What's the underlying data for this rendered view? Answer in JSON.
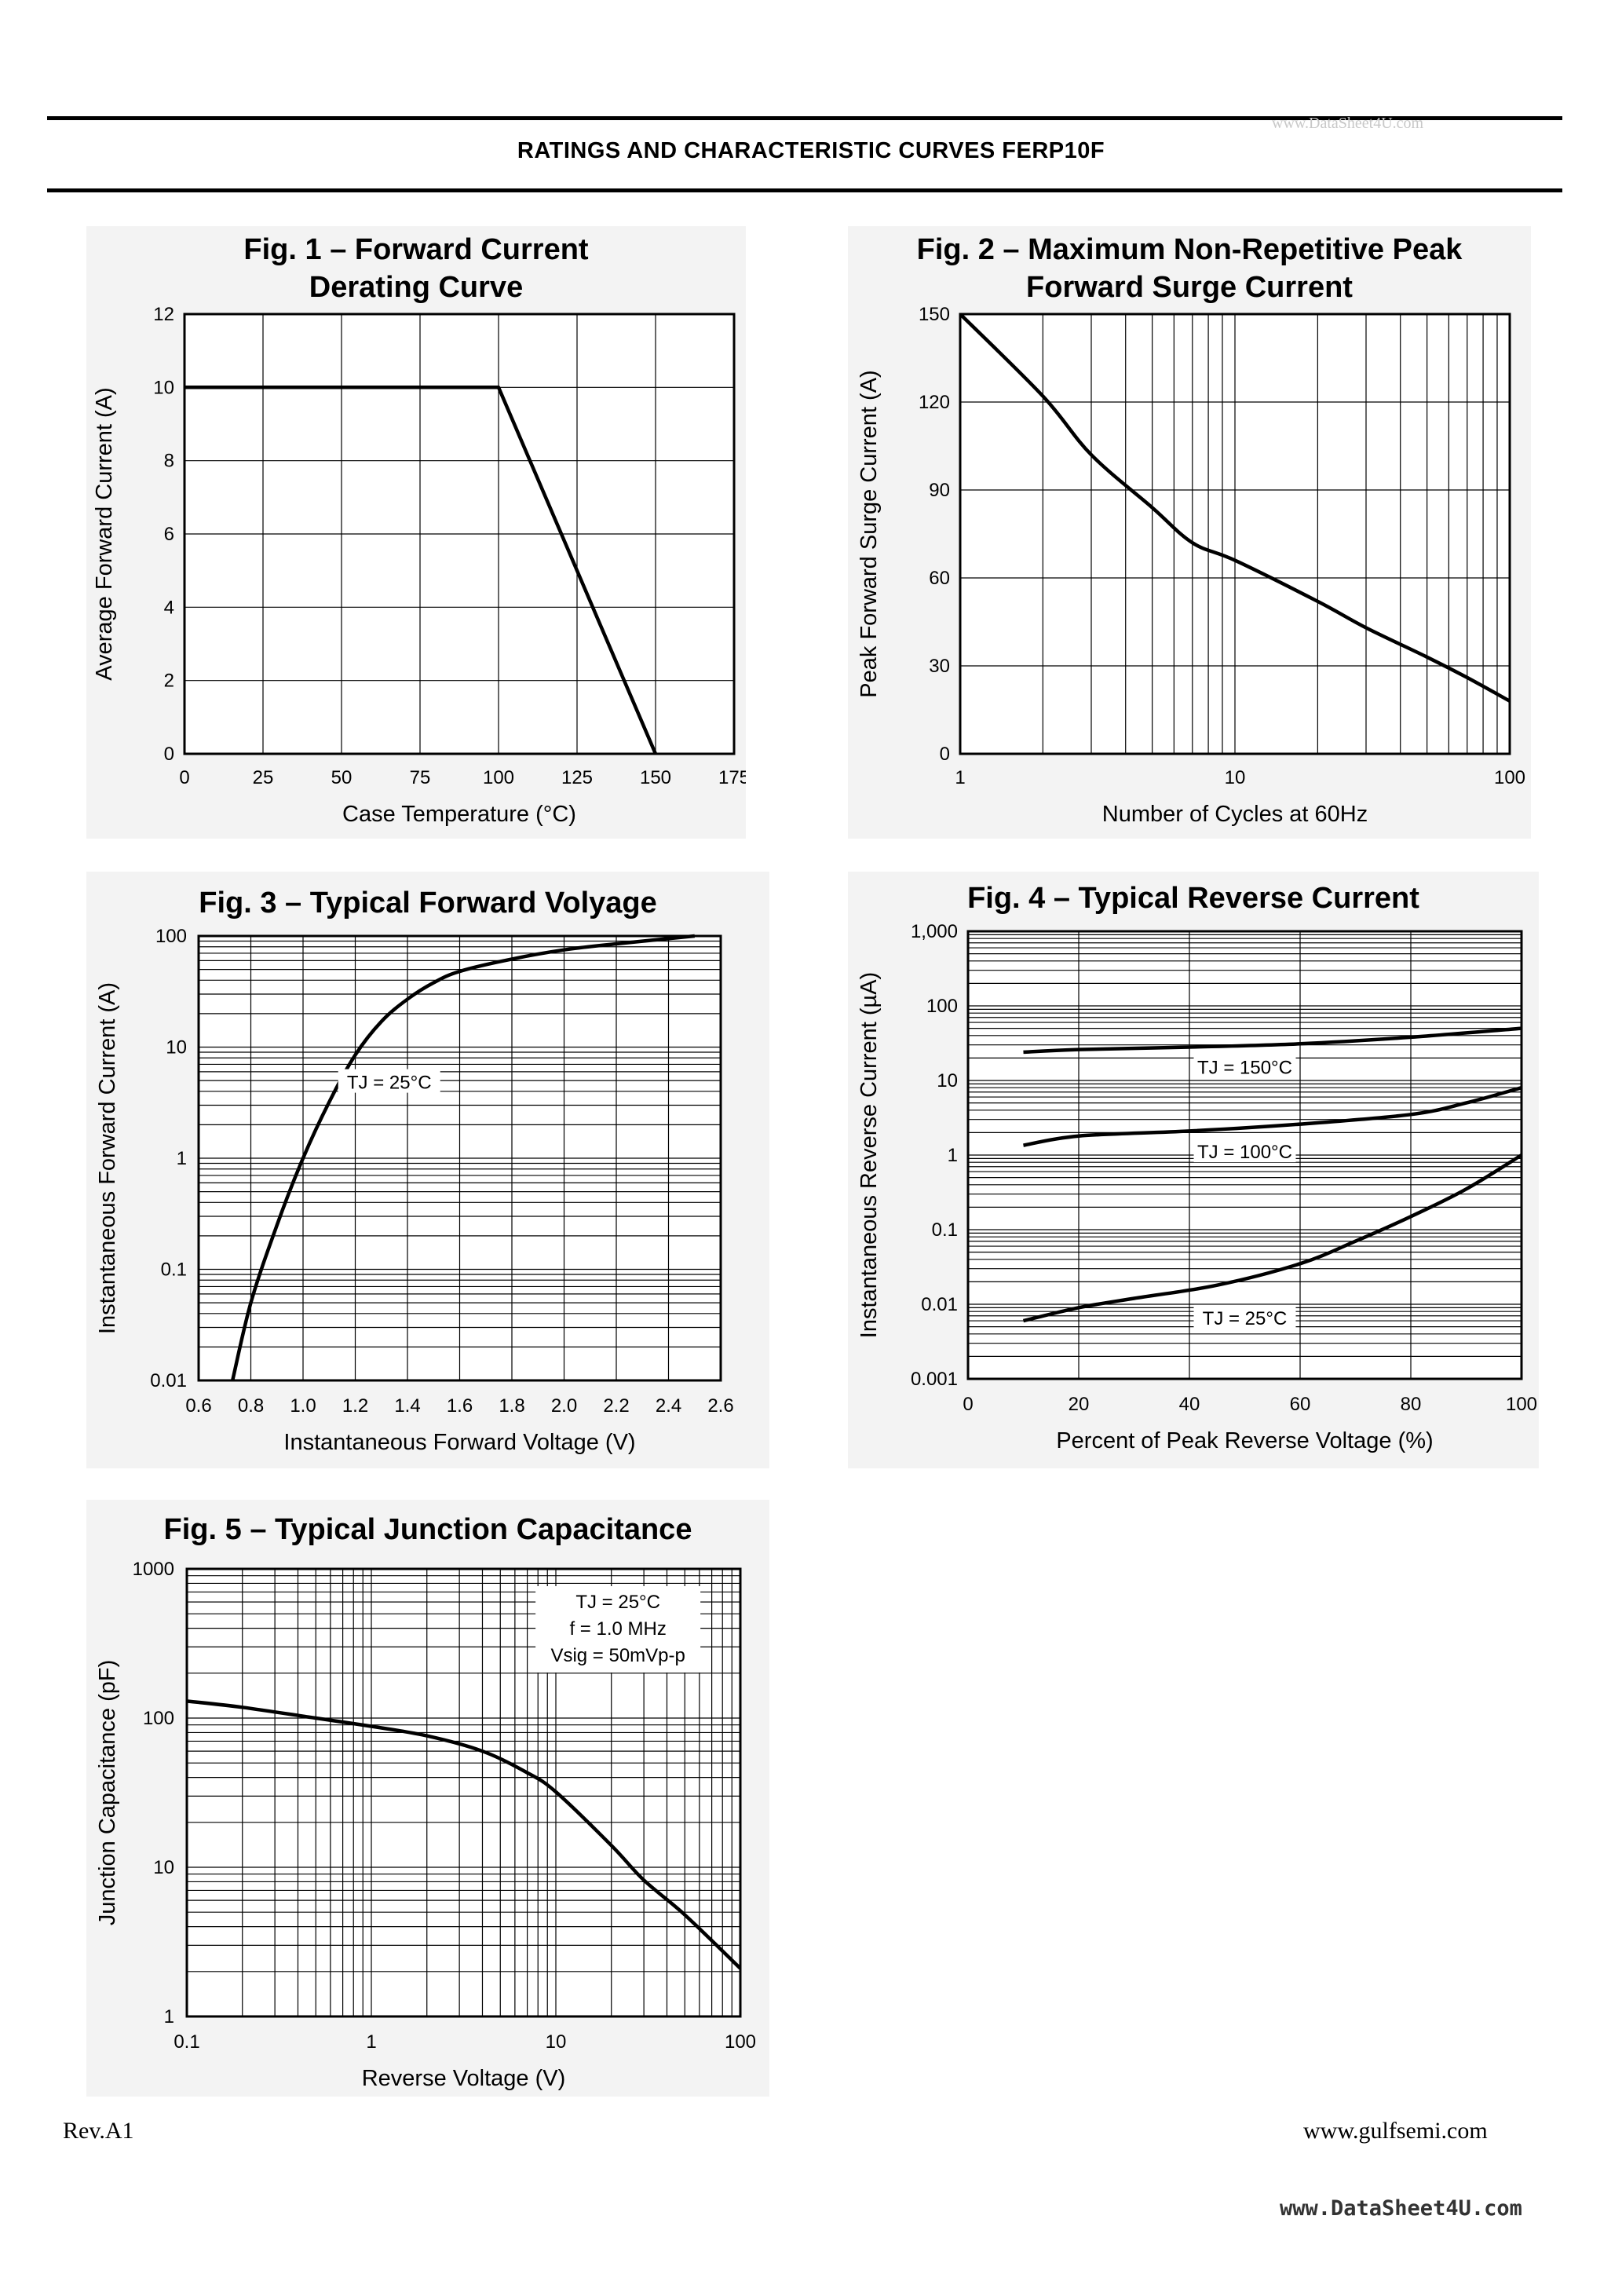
{
  "header": {
    "title": "RATINGS AND CHARACTERISTIC CURVES FERP10F",
    "watermark": "www.DataSheet4U.com"
  },
  "footer": {
    "revision": "Rev.A1",
    "website": "www.gulfsemi.com",
    "watermark": "www.DataSheet4U.com"
  },
  "chart_data": [
    {
      "id": "fig1",
      "type": "line",
      "title_lines": [
        "Fig. 1 – Forward Current",
        "Derating Curve"
      ],
      "xlabel": "Case Temperature (°C)",
      "ylabel": "Average Forward Current (A)",
      "xlim": [
        0,
        175
      ],
      "ylim": [
        0,
        12
      ],
      "xscale": "linear",
      "yscale": "linear",
      "xticks": [
        0,
        25,
        50,
        75,
        100,
        125,
        150,
        175
      ],
      "xtick_labels": [
        "0",
        "25",
        "50",
        "75",
        "100",
        "125",
        "150",
        "175"
      ],
      "yticks": [
        0,
        2,
        4,
        6,
        8,
        10,
        12
      ],
      "ytick_labels": [
        "0",
        "2",
        "4",
        "6",
        "8",
        "10",
        "12"
      ],
      "grid": true,
      "series": [
        {
          "x": [
            0,
            100,
            150
          ],
          "y": [
            10,
            10,
            0
          ]
        }
      ],
      "annotations": []
    },
    {
      "id": "fig2",
      "type": "line",
      "title_lines": [
        "Fig. 2 – Maximum Non-Repetitive Peak",
        "Forward Surge Current"
      ],
      "xlabel": "Number of Cycles at 60Hz",
      "ylabel": "Peak Forward Surge Current (A)",
      "xlim": [
        1,
        100
      ],
      "ylim": [
        0,
        150
      ],
      "xscale": "log",
      "yscale": "linear",
      "xticks": [
        1,
        10,
        100
      ],
      "xtick_labels": [
        "1",
        "10",
        "100"
      ],
      "yticks": [
        0,
        30,
        60,
        90,
        120,
        150
      ],
      "ytick_labels": [
        "0",
        "30",
        "60",
        "90",
        "120",
        "150"
      ],
      "grid": true,
      "series": [
        {
          "x": [
            1,
            2,
            3,
            5,
            7,
            10,
            20,
            30,
            50,
            70,
            100
          ],
          "y": [
            150,
            122,
            102,
            84,
            72,
            66,
            52,
            43,
            33,
            26,
            18
          ]
        }
      ],
      "annotations": []
    },
    {
      "id": "fig3",
      "type": "line",
      "title_lines": [
        "Fig. 3 – Typical Forward Volyage"
      ],
      "xlabel": "Instantaneous Forward Voltage (V)",
      "ylabel": "Instantaneous Forward Current (A)",
      "xlim": [
        0.6,
        2.6
      ],
      "ylim": [
        0.01,
        100
      ],
      "xscale": "linear",
      "yscale": "log",
      "xticks": [
        0.6,
        0.8,
        1.0,
        1.2,
        1.4,
        1.6,
        1.8,
        2.0,
        2.2,
        2.4,
        2.6
      ],
      "xtick_labels": [
        "0.6",
        "0.8",
        "1.0",
        "1.2",
        "1.4",
        "1.6",
        "1.8",
        "2.0",
        "2.2",
        "2.4",
        "2.6"
      ],
      "yticks": [
        0.01,
        0.1,
        1,
        10,
        100
      ],
      "ytick_labels": [
        "0.01",
        "0.1",
        "1",
        "10",
        "100"
      ],
      "grid": true,
      "series": [
        {
          "x": [
            0.73,
            0.8,
            0.9,
            1.0,
            1.1,
            1.2,
            1.3,
            1.4,
            1.5,
            1.6,
            1.8,
            2.0,
            2.2,
            2.5
          ],
          "y": [
            0.01,
            0.05,
            0.25,
            1.0,
            3.2,
            8.5,
            17,
            27,
            38,
            48,
            62,
            75,
            85,
            100
          ]
        }
      ],
      "annotations": [
        {
          "text": "TJ = 25°C",
          "x": 1.33,
          "y": 4.8
        }
      ]
    },
    {
      "id": "fig4",
      "type": "line",
      "title_lines": [
        "Fig. 4 – Typical Reverse Current"
      ],
      "xlabel": "Percent of Peak Reverse Voltage (%)",
      "ylabel": "Instantaneous Reverse Current (µA)",
      "xlim": [
        0,
        100
      ],
      "ylim": [
        0.001,
        1000
      ],
      "xscale": "linear",
      "yscale": "log",
      "xticks": [
        0,
        20,
        40,
        60,
        80,
        100
      ],
      "xtick_labels": [
        "0",
        "20",
        "40",
        "60",
        "80",
        "100"
      ],
      "yticks": [
        0.001,
        0.01,
        0.1,
        1,
        10,
        100,
        1000
      ],
      "ytick_labels": [
        "0.001",
        "0.01",
        "0.1",
        "1",
        "10",
        "100",
        "1,000"
      ],
      "grid": true,
      "series": [
        {
          "name": "TJ = 150°C",
          "x": [
            10,
            20,
            40,
            60,
            80,
            100
          ],
          "y": [
            24,
            26,
            28,
            31,
            38,
            50
          ]
        },
        {
          "name": "TJ = 100°C",
          "x": [
            10,
            20,
            40,
            60,
            80,
            90,
            100
          ],
          "y": [
            1.35,
            1.8,
            2.1,
            2.6,
            3.5,
            5,
            8
          ]
        },
        {
          "name": "TJ = 25°C",
          "x": [
            10,
            20,
            30,
            45,
            60,
            70,
            80,
            90,
            100
          ],
          "y": [
            0.006,
            0.009,
            0.012,
            0.018,
            0.035,
            0.07,
            0.15,
            0.35,
            1.0
          ]
        }
      ],
      "annotations": [
        {
          "text": "TJ = 150°C",
          "x": 50,
          "y": 15
        },
        {
          "text": "TJ = 100°C",
          "x": 50,
          "y": 1.1
        },
        {
          "text": "TJ = 25°C",
          "x": 50,
          "y": 0.0065
        }
      ]
    },
    {
      "id": "fig5",
      "type": "line",
      "title_lines": [
        "Fig. 5 – Typical Junction Capacitance"
      ],
      "xlabel": "Reverse Voltage (V)",
      "ylabel": "Junction Capacitance (pF)",
      "xlim": [
        0.1,
        100
      ],
      "ylim": [
        1,
        1000
      ],
      "xscale": "log",
      "yscale": "log",
      "xticks": [
        0.1,
        1,
        10,
        100
      ],
      "xtick_labels": [
        "0.1",
        "1",
        "10",
        "100"
      ],
      "yticks": [
        1,
        10,
        100,
        1000
      ],
      "ytick_labels": [
        "1",
        "10",
        "100",
        "1000"
      ],
      "grid": true,
      "series": [
        {
          "x": [
            0.1,
            0.2,
            0.5,
            1,
            2,
            4,
            7,
            10,
            20,
            30,
            50,
            100
          ],
          "y": [
            130,
            118,
            100,
            88,
            76,
            60,
            43,
            32,
            14,
            8.2,
            4.8,
            2.1
          ]
        }
      ],
      "annotations": [
        {
          "text": "TJ = 25°C",
          "x": 0.22,
          "y": 0
        },
        {
          "text": "f = 1.0 MHz",
          "x": 0,
          "y": 0
        },
        {
          "text": "Vsig = 50mVp-p",
          "x": 0,
          "y": 0
        }
      ]
    }
  ]
}
